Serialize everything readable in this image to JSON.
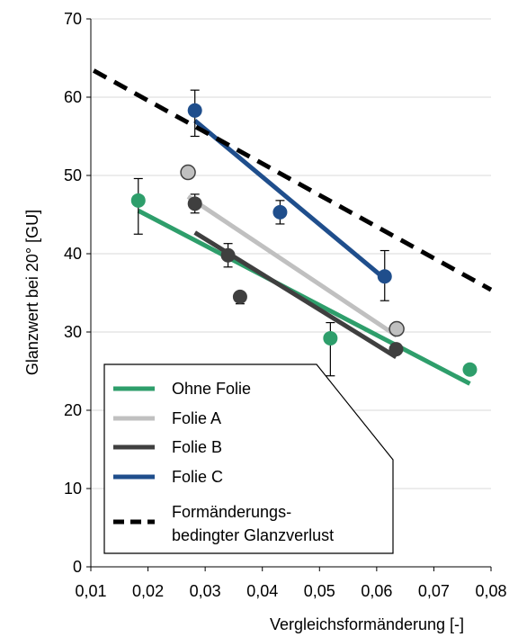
{
  "chart_data": {
    "type": "scatter",
    "xlabel": "Vergleichsformänderung [-]",
    "ylabel": "Glanzwert bei 20° [GU]",
    "xlim": [
      0.01,
      0.08
    ],
    "ylim": [
      0,
      70
    ],
    "x_ticks": [
      "0,01",
      "0,02",
      "0,03",
      "0,04",
      "0,05",
      "0,06",
      "0,07",
      "0,08"
    ],
    "y_ticks": [
      "0",
      "10",
      "20",
      "30",
      "40",
      "50",
      "60",
      "70"
    ],
    "grid": "horizontal",
    "legend_position": "bottom-left",
    "series": [
      {
        "name": "Ohne Folie",
        "color": "#2e9e6b",
        "points": [
          {
            "x": 0.0183,
            "y": 46.8,
            "err_low": 42.5,
            "err_high": 49.6
          },
          {
            "x": 0.0519,
            "y": 29.2,
            "err_low": 24.4,
            "err_high": 31.2
          },
          {
            "x": 0.0763,
            "y": 25.2,
            "err_low": 25.0,
            "err_high": 25.5
          }
        ],
        "trend": {
          "x": [
            0.0183,
            0.0763
          ],
          "y": [
            45.5,
            23.4
          ]
        }
      },
      {
        "name": "Folie A",
        "color": "#c0c0c0",
        "points": [
          {
            "x": 0.027,
            "y": 50.4,
            "err_low": 50.1,
            "err_high": 50.7
          },
          {
            "x": 0.0635,
            "y": 30.4,
            "err_low": 30.1,
            "err_high": 30.7
          }
        ],
        "trend": {
          "x": [
            0.027,
            0.0635
          ],
          "y": [
            47.3,
            29.5
          ]
        }
      },
      {
        "name": "Folie B",
        "color": "#3f3f3f",
        "points": [
          {
            "x": 0.0282,
            "y": 46.4,
            "err_low": 45.2,
            "err_high": 47.6
          },
          {
            "x": 0.034,
            "y": 39.8,
            "err_low": 38.3,
            "err_high": 41.3
          },
          {
            "x": 0.0361,
            "y": 34.5,
            "err_low": 33.6,
            "err_high": 35.0
          },
          {
            "x": 0.0634,
            "y": 27.8,
            "err_low": 27.5,
            "err_high": 28.1
          }
        ],
        "trend": {
          "x": [
            0.0282,
            0.0634
          ],
          "y": [
            42.7,
            26.8
          ]
        }
      },
      {
        "name": "Folie C",
        "color": "#1f4e8c",
        "points": [
          {
            "x": 0.0282,
            "y": 58.3,
            "err_low": 55.0,
            "err_high": 60.9
          },
          {
            "x": 0.0431,
            "y": 45.3,
            "err_low": 43.8,
            "err_high": 46.8
          },
          {
            "x": 0.0614,
            "y": 37.1,
            "err_low": 34.0,
            "err_high": 40.4
          }
        ],
        "trend": {
          "x": [
            0.0282,
            0.0614
          ],
          "y": [
            57.0,
            36.8
          ]
        }
      },
      {
        "name": "Formänderungs- bedingter Glanzverlust",
        "color": "#000000",
        "dashed": true,
        "line": {
          "x": [
            0.0105,
            0.08
          ],
          "y": [
            63.4,
            35.4
          ]
        }
      }
    ],
    "legend": [
      {
        "label": "Ohne Folie",
        "color": "#2e9e6b",
        "dashed": false
      },
      {
        "label": "Folie A",
        "color": "#c0c0c0",
        "dashed": false
      },
      {
        "label": "Folie B",
        "color": "#3f3f3f",
        "dashed": false
      },
      {
        "label": "Folie C",
        "color": "#1f4e8c",
        "dashed": false
      },
      {
        "label_lines": [
          "Formänderungs-",
          "bedingter Glanzverlust"
        ],
        "color": "#000000",
        "dashed": true
      }
    ]
  }
}
